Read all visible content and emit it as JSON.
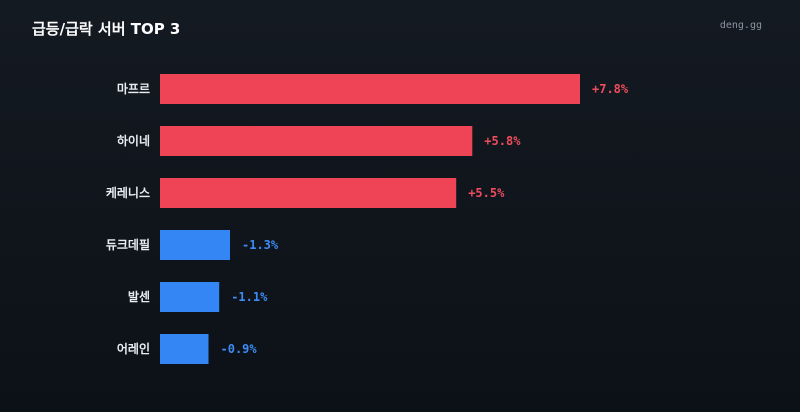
{
  "header": {
    "title": "급등/급락 서버 TOP 3",
    "brand": "deng.gg"
  },
  "colors": {
    "positive": "#ef4455",
    "negative": "#3386f4",
    "positive_text": "#ef4c5c",
    "negative_text": "#3d8cf5",
    "label": "#e9edf2"
  },
  "chart_data": {
    "type": "bar",
    "orientation": "horizontal",
    "title": "급등/급락 서버 TOP 3",
    "categories": [
      "마프르",
      "하이네",
      "케레니스",
      "듀크데필",
      "발센",
      "어레인"
    ],
    "values": [
      7.8,
      5.8,
      5.5,
      -1.3,
      -1.1,
      -0.9
    ],
    "value_labels": [
      "+7.8%",
      "+5.8%",
      "+5.5%",
      "-1.3%",
      "-1.1%",
      "-0.9%"
    ],
    "unit": "%",
    "bar_length": "absolute value",
    "grid": false,
    "legend": "none"
  }
}
